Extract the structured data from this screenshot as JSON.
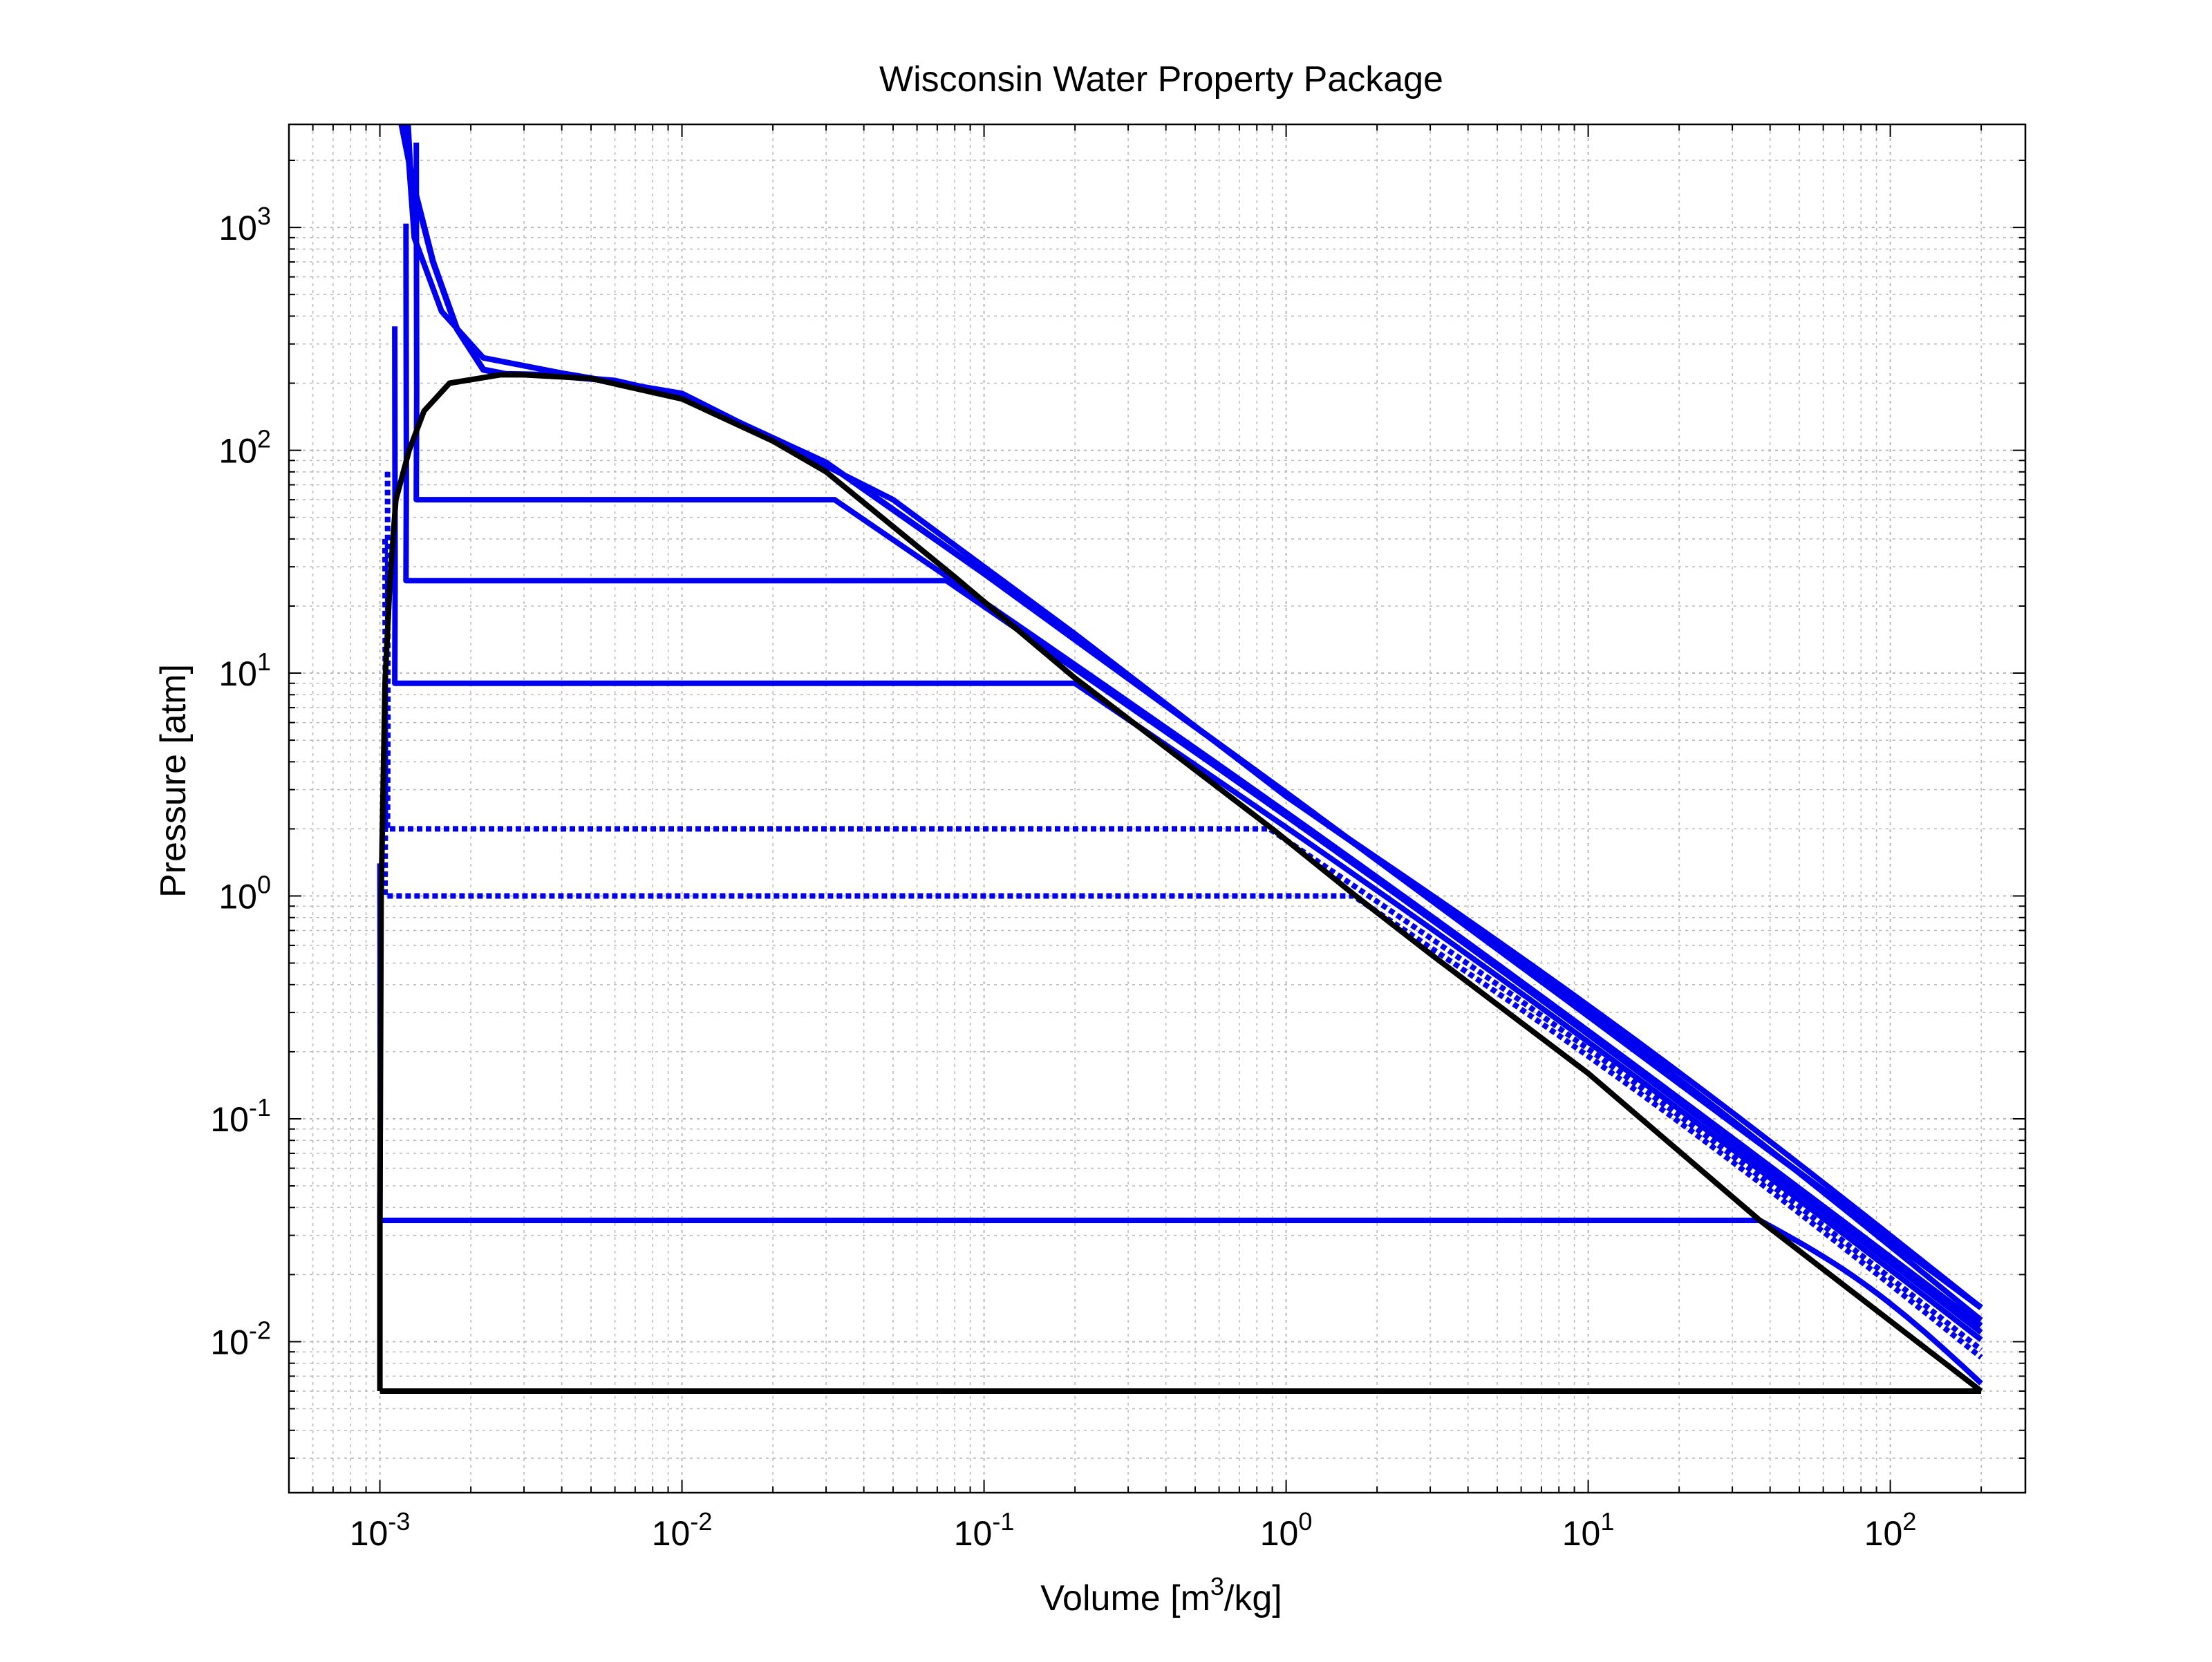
{
  "chart_data": {
    "type": "line",
    "title": "Wisconsin Water Property Package",
    "xlabel": {
      "main": "Volume [m",
      "sup": "3",
      "rest": "/kg]"
    },
    "ylabel": "Pressure [atm]",
    "xscale": "log",
    "yscale": "log",
    "xlim": [
      0.0005,
      280
    ],
    "ylim": [
      0.0021,
      2900
    ],
    "grid": true,
    "minor_grid": true,
    "x_ticks": [
      {
        "value": 0.001,
        "base": "10",
        "exp": "-3"
      },
      {
        "value": 0.01,
        "base": "10",
        "exp": "-2"
      },
      {
        "value": 0.1,
        "base": "10",
        "exp": "-1"
      },
      {
        "value": 1,
        "base": "10",
        "exp": "0"
      },
      {
        "value": 10,
        "base": "10",
        "exp": "1"
      },
      {
        "value": 100,
        "base": "10",
        "exp": "2"
      }
    ],
    "y_ticks": [
      {
        "value": 0.01,
        "base": "10",
        "exp": "-2"
      },
      {
        "value": 0.1,
        "base": "10",
        "exp": "-1"
      },
      {
        "value": 1,
        "base": "10",
        "exp": "0"
      },
      {
        "value": 10,
        "base": "10",
        "exp": "1"
      },
      {
        "value": 100,
        "base": "10",
        "exp": "2"
      },
      {
        "value": 1000,
        "base": "10",
        "exp": "3"
      }
    ],
    "colors": {
      "saturation": "#000000",
      "isotherm": "#0000ee",
      "grid": "#b8b8b8",
      "axes": "#000000"
    },
    "saturation_dome": {
      "liquid": [
        [
          0.001,
          0.006
        ],
        [
          0.001,
          0.035
        ],
        [
          0.00101,
          1
        ],
        [
          0.00104,
          9
        ],
        [
          0.00108,
          26
        ],
        [
          0.00113,
          60
        ],
        [
          0.00125,
          100
        ],
        [
          0.0014,
          150
        ],
        [
          0.0017,
          200
        ],
        [
          0.0025,
          218
        ],
        [
          0.003,
          218
        ]
      ],
      "vapor": [
        [
          0.003,
          218
        ],
        [
          0.005,
          210
        ],
        [
          0.01,
          170
        ],
        [
          0.02,
          110
        ],
        [
          0.03,
          80
        ],
        [
          0.08,
          27
        ],
        [
          0.2,
          9.5
        ],
        [
          0.9,
          2
        ],
        [
          1.7,
          1
        ],
        [
          3.0,
          0.55
        ],
        [
          10,
          0.16
        ],
        [
          37,
          0.035
        ],
        [
          200,
          0.006
        ]
      ],
      "triple_line": [
        [
          0.001,
          0.006
        ],
        [
          200,
          0.006
        ]
      ]
    },
    "isotherms": [
      {
        "pressure": 0.035,
        "style": "solid",
        "v_liquid": 0.001,
        "v_vapor": 37,
        "p_end": 0.0065
      },
      {
        "pressure": 1,
        "style": "dotted",
        "v_liquid": 0.00104,
        "v_vapor": 1.67,
        "p_end": 0.0085
      },
      {
        "pressure": 2,
        "style": "dotted",
        "v_liquid": 0.00106,
        "v_vapor": 0.88,
        "p_end": 0.0092
      },
      {
        "pressure": 9,
        "style": "solid",
        "v_liquid": 0.00112,
        "v_vapor": 0.2,
        "p_end": 0.0102
      },
      {
        "pressure": 26,
        "style": "solid",
        "v_liquid": 0.00122,
        "v_vapor": 0.075,
        "p_end": 0.011
      },
      {
        "pressure": 60,
        "style": "solid",
        "v_liquid": 0.00132,
        "v_vapor": 0.032,
        "p_end": 0.0118
      },
      {
        "pressure": null,
        "style": "solid",
        "supercritical": true,
        "p_end": 0.0125
      },
      {
        "pressure": null,
        "style": "solid",
        "supercritical": true,
        "p_end": 0.0142
      }
    ],
    "critical_isotherm": [
      [
        0.00118,
        2900
      ],
      [
        0.0013,
        1500
      ],
      [
        0.0015,
        700
      ],
      [
        0.0018,
        350
      ],
      [
        0.0022,
        230
      ],
      [
        0.0026,
        220
      ],
      [
        0.0035,
        218
      ],
      [
        0.006,
        205
      ],
      [
        0.01,
        175
      ],
      [
        0.03,
        88
      ],
      [
        0.1,
        28
      ],
      [
        1,
        2.9
      ],
      [
        10,
        0.29
      ],
      [
        200,
        0.0142
      ]
    ]
  }
}
